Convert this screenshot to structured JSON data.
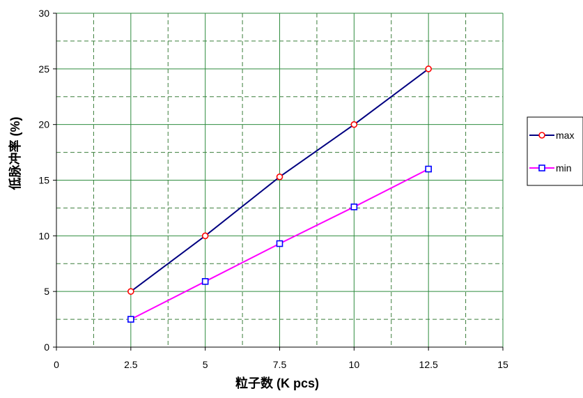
{
  "chart_data": {
    "type": "line",
    "title": "",
    "xlabel": "粒子数 (K pcs)",
    "ylabel": "低脉冲率 (%)",
    "xlim": [
      0,
      15
    ],
    "ylim": [
      0,
      30
    ],
    "x_ticks": [
      "0",
      "2.5",
      "5",
      "7.5",
      "10",
      "12.5",
      "15"
    ],
    "y_ticks": [
      "0",
      "5",
      "10",
      "15",
      "20",
      "25",
      "30"
    ],
    "grid": true,
    "legend_position": "right",
    "series": [
      {
        "name": "max",
        "color": "#000080",
        "marker": "circle",
        "marker_color": "#ff0000",
        "x": [
          2.5,
          5,
          7.5,
          10,
          12.5
        ],
        "y": [
          5,
          10,
          15.3,
          20,
          25
        ]
      },
      {
        "name": "min",
        "color": "#ff00ff",
        "marker": "square",
        "marker_color": "#0000ff",
        "x": [
          2.5,
          5,
          7.5,
          10,
          12.5
        ],
        "y": [
          2.5,
          5.9,
          9.3,
          12.6,
          16
        ]
      }
    ]
  }
}
